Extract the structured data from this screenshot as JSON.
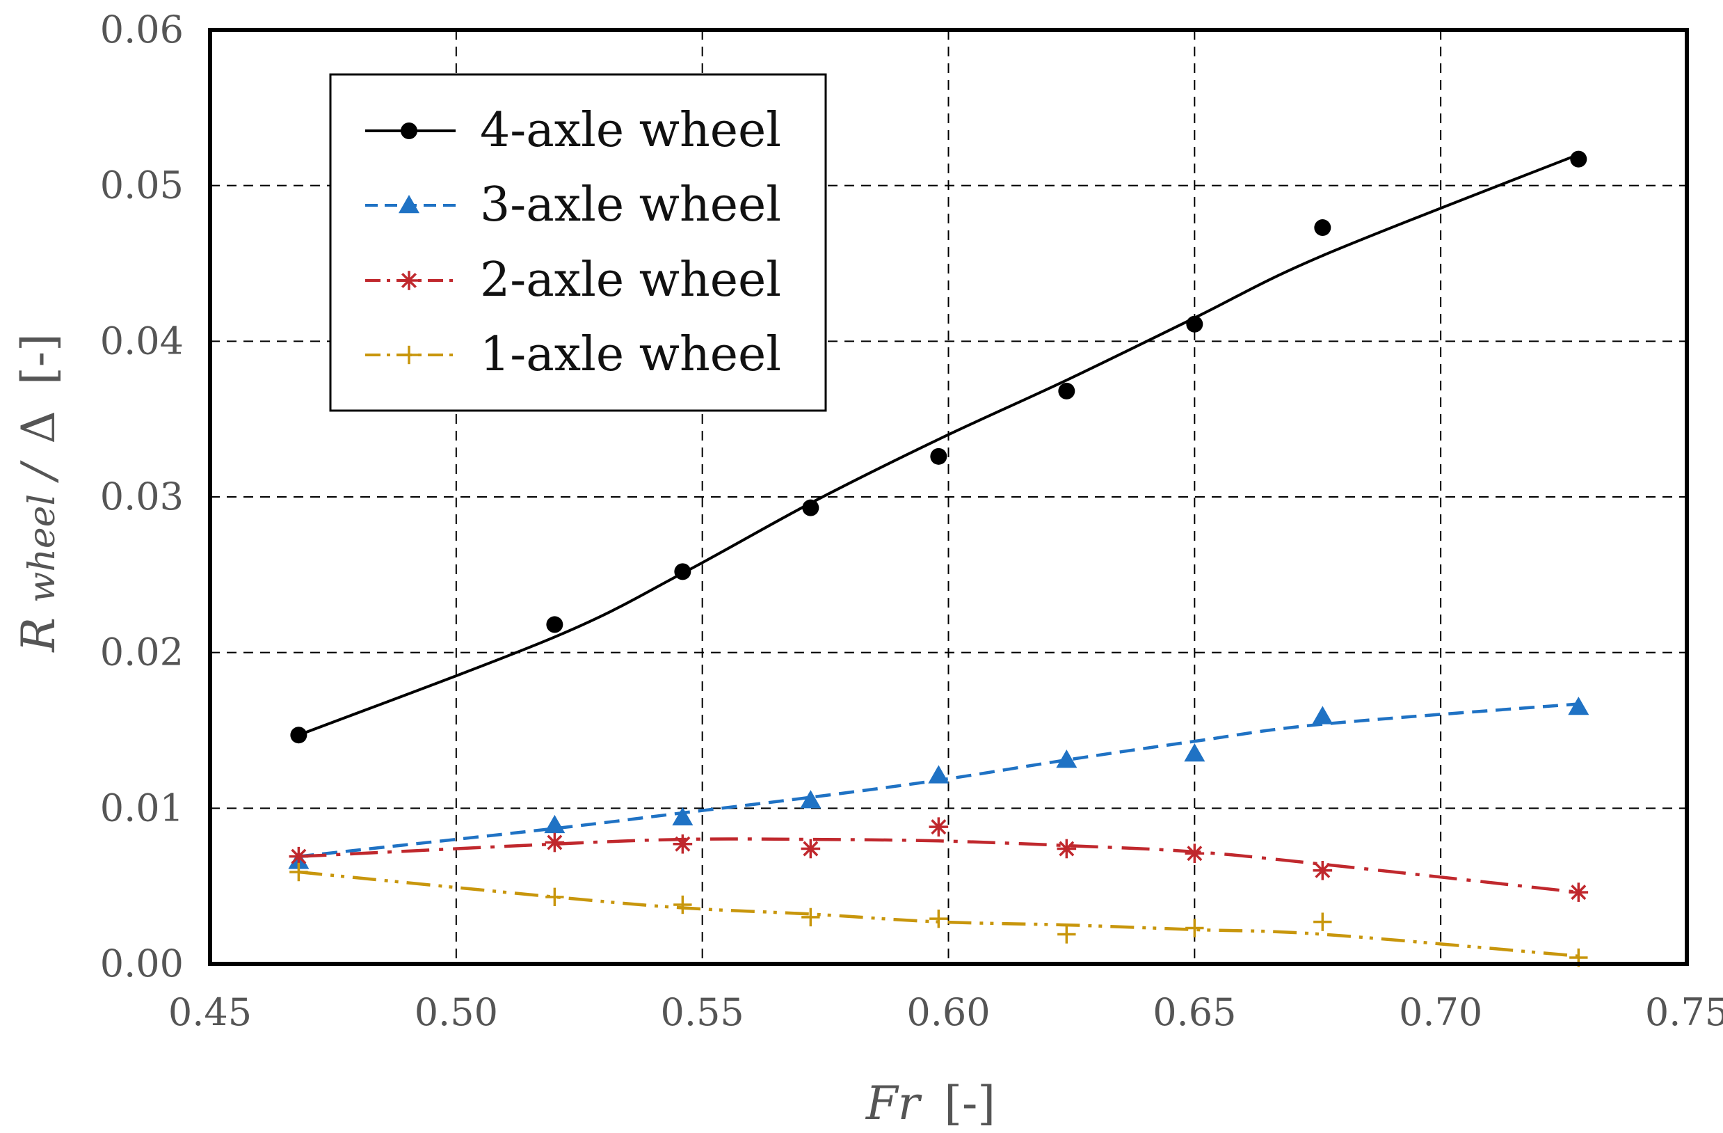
{
  "chart_data": {
    "type": "line",
    "title": "",
    "xlabel": {
      "symbol": "Fr",
      "unit": "[-]"
    },
    "ylabel": {
      "symbol": "R",
      "subscript": "wheel",
      "divider": "/",
      "delta": "Δ",
      "unit": "[-]"
    },
    "xlim": [
      0.45,
      0.75
    ],
    "ylim": [
      0.0,
      0.06
    ],
    "x_ticks": [
      0.45,
      0.5,
      0.55,
      0.6,
      0.65,
      0.7,
      0.75
    ],
    "x_tick_labels": [
      "0.45",
      "0.50",
      "0.55",
      "0.60",
      "0.65",
      "0.70",
      "0.75"
    ],
    "y_ticks": [
      0.0,
      0.01,
      0.02,
      0.03,
      0.04,
      0.05,
      0.06
    ],
    "y_tick_labels": [
      "0.00",
      "0.01",
      "0.02",
      "0.03",
      "0.04",
      "0.05",
      "0.06"
    ],
    "grid": true,
    "legend_position": "top-left",
    "x": [
      0.468,
      0.52,
      0.546,
      0.572,
      0.598,
      0.624,
      0.65,
      0.676,
      0.728
    ],
    "series": [
      {
        "name": "4-axle wheel",
        "color": "#000000",
        "marker": "circle",
        "line_style": "solid",
        "values": [
          0.0147,
          0.0218,
          0.0252,
          0.0293,
          0.0326,
          0.0368,
          0.0411,
          0.0473,
          0.0517
        ],
        "fit_values": [
          0.0147,
          0.021,
          0.0251,
          0.0296,
          0.0337,
          0.0375,
          0.0415,
          0.0455,
          0.052
        ]
      },
      {
        "name": "3-axle wheel",
        "color": "#1f72c4",
        "marker": "triangle",
        "line_style": "dashed",
        "values": [
          0.0066,
          0.0089,
          0.0094,
          0.0105,
          0.0121,
          0.0131,
          0.0135,
          0.0159,
          0.0165
        ],
        "fit_values": [
          0.0069,
          0.0087,
          0.0097,
          0.0107,
          0.0118,
          0.0131,
          0.0143,
          0.0154,
          0.0167
        ]
      },
      {
        "name": "2-axle wheel",
        "color": "#c0282d",
        "marker": "asterisk",
        "line_style": "dashdot",
        "values": [
          0.0069,
          0.0078,
          0.0077,
          0.0074,
          0.0088,
          0.0074,
          0.0071,
          0.006,
          0.0046
        ],
        "fit_values": [
          0.0069,
          0.0077,
          0.008,
          0.008,
          0.0079,
          0.0076,
          0.0072,
          0.0064,
          0.0046
        ]
      },
      {
        "name": "1-axle wheel",
        "color": "#c8960c",
        "marker": "plus",
        "line_style": "dashdotdot",
        "values": [
          0.0059,
          0.0043,
          0.0038,
          0.003,
          0.0029,
          0.0019,
          0.0023,
          0.0027,
          0.0004
        ],
        "fit_values": [
          0.0059,
          0.0043,
          0.0036,
          0.0032,
          0.0027,
          0.0025,
          0.0022,
          0.0019,
          0.0005
        ]
      }
    ]
  }
}
